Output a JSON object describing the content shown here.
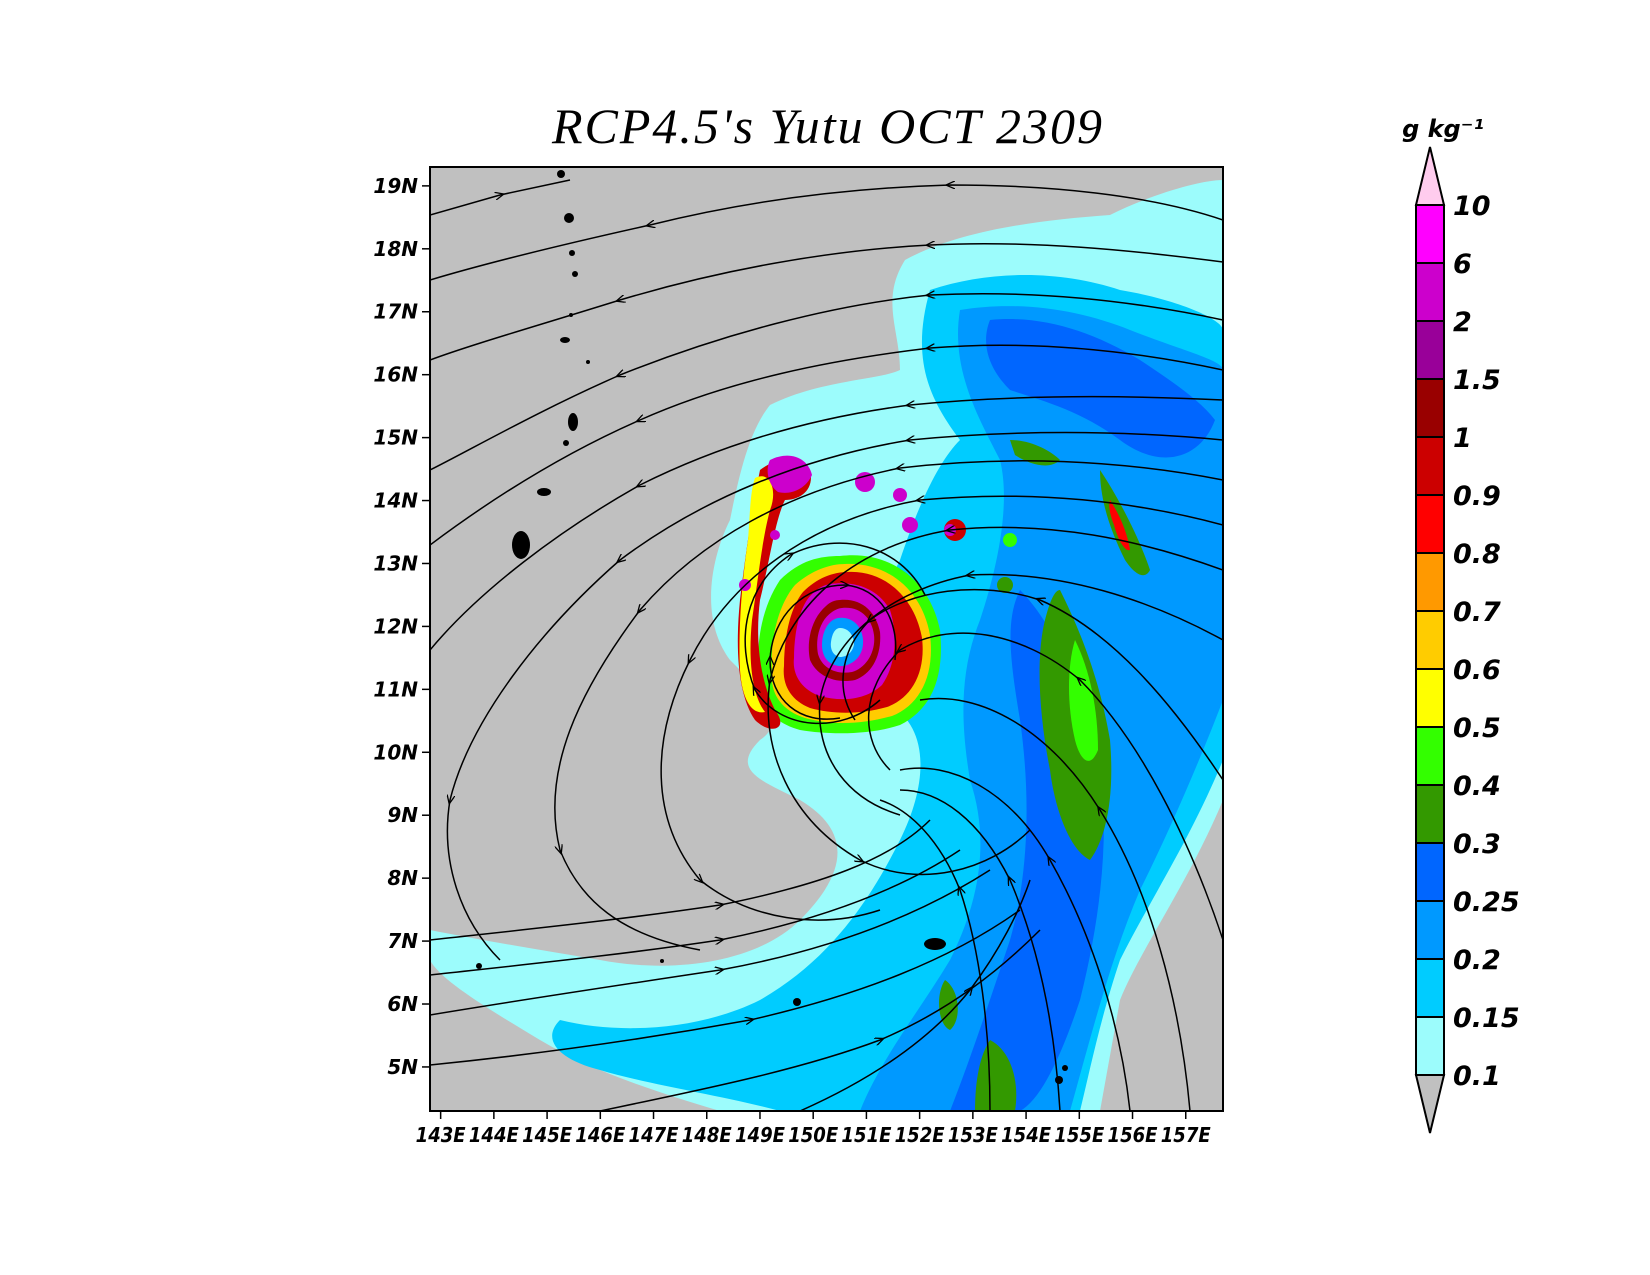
{
  "title": "RCP4.5's Yutu OCT 2309",
  "map": {
    "lon_range": [
      142.8,
      157.7
    ],
    "lat_range": [
      4.3,
      19.3
    ],
    "lon_ticks": [
      143,
      144,
      145,
      146,
      147,
      148,
      149,
      150,
      151,
      152,
      153,
      154,
      155,
      156,
      157
    ],
    "lon_tick_labels": [
      "143E",
      "144E",
      "145E",
      "146E",
      "147E",
      "148E",
      "149E",
      "150E",
      "151E",
      "152E",
      "153E",
      "154E",
      "155E",
      "156E",
      "157E"
    ],
    "lat_ticks": [
      5,
      6,
      7,
      8,
      9,
      10,
      11,
      12,
      13,
      14,
      15,
      16,
      17,
      18,
      19
    ],
    "lat_tick_labels": [
      "5N",
      "6N",
      "7N",
      "8N",
      "9N",
      "10N",
      "11N",
      "12N",
      "13N",
      "14N",
      "15N",
      "16N",
      "17N",
      "18N",
      "19N"
    ],
    "background_color": "#c0c0c0",
    "storm_center": {
      "lon": 150.1,
      "lat": 11.9
    }
  },
  "colorbar": {
    "unit": "g  kg⁻¹",
    "levels": [
      "0.1",
      "0.15",
      "0.2",
      "0.25",
      "0.3",
      "0.4",
      "0.5",
      "0.6",
      "0.7",
      "0.8",
      "0.9",
      "1",
      "1.5",
      "2",
      "6",
      "10"
    ],
    "colors": [
      "#c0c0c0",
      "#9cfcfc",
      "#00ccff",
      "#0099ff",
      "#0066ff",
      "#339900",
      "#33ff00",
      "#ffff00",
      "#ffcc00",
      "#ff9900",
      "#ff0000",
      "#cc0000",
      "#990000",
      "#990099",
      "#cc00cc",
      "#ff00ff",
      "#ffccee"
    ]
  }
}
